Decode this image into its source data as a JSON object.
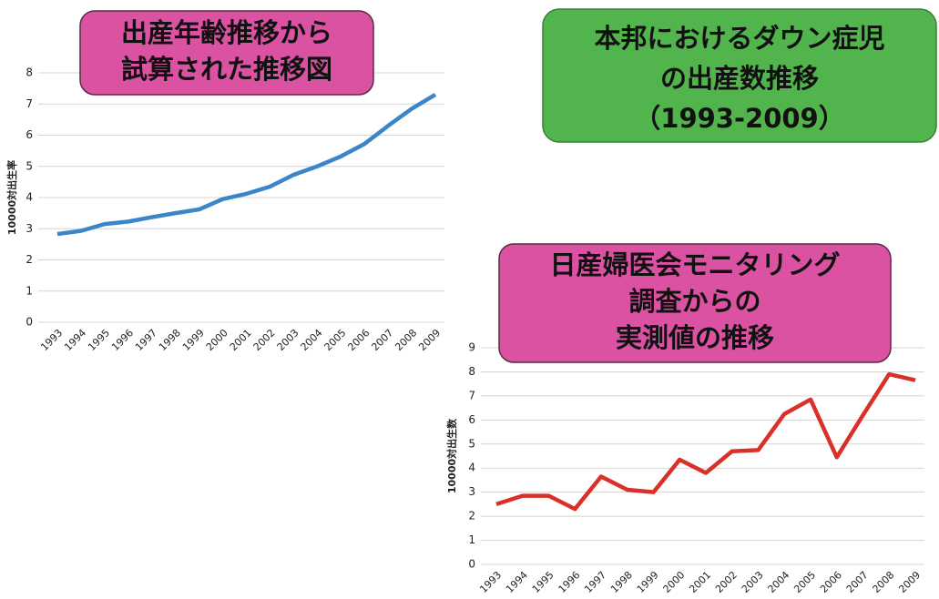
{
  "title": [
    "本邦におけるダウン症児",
    "の出産数推移",
    "（1993-2009）"
  ],
  "chart_data": [
    {
      "type": "line",
      "title": [
        "出産年齢推移から",
        "試算された推移図"
      ],
      "y_label": "10000対出生率",
      "categories": [
        "1993",
        "1994",
        "1995",
        "1996",
        "1997",
        "1998",
        "1999",
        "2000",
        "2001",
        "2002",
        "2003",
        "2004",
        "2005",
        "2006",
        "2007",
        "2008",
        "2009"
      ],
      "series": [
        {
          "color": "#3a86c8",
          "values": [
            2.83,
            2.93,
            3.15,
            3.23,
            3.37,
            3.5,
            3.62,
            3.95,
            4.12,
            4.35,
            4.73,
            5.0,
            5.32,
            5.72,
            6.3,
            6.85,
            7.3
          ]
        }
      ],
      "ylim": [
        0,
        8
      ],
      "yticks": [
        0,
        1,
        2,
        3,
        4,
        5,
        6,
        7,
        8
      ],
      "grid": true
    },
    {
      "type": "line",
      "title": [
        "日産婦医会モニタリング",
        "調査からの",
        "実測値の推移"
      ],
      "y_label": "10000対出生数",
      "categories": [
        "1993",
        "1994",
        "1995",
        "1996",
        "1997",
        "1998",
        "1999",
        "2000",
        "2001",
        "2002",
        "2003",
        "2004",
        "2005",
        "2006",
        "2007",
        "2008",
        "2009"
      ],
      "series": [
        {
          "color": "#d9302a",
          "values": [
            2.5,
            2.85,
            2.85,
            2.3,
            3.65,
            3.1,
            3.0,
            4.35,
            3.8,
            4.7,
            4.75,
            6.25,
            6.85,
            4.45,
            6.2,
            7.9,
            7.65
          ]
        }
      ],
      "ylim": [
        0,
        9
      ],
      "yticks": [
        0,
        1,
        2,
        3,
        4,
        5,
        6,
        7,
        8,
        9
      ],
      "grid": true
    }
  ]
}
